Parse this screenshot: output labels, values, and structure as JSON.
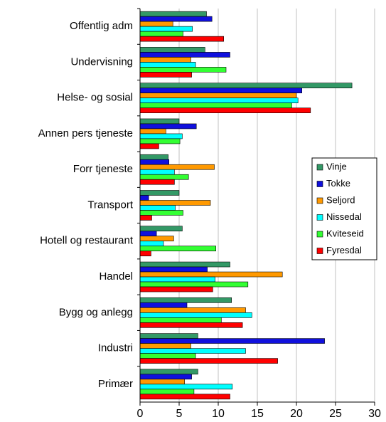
{
  "chart_data": {
    "type": "hbar",
    "categories": [
      "Offentlig adm",
      "Undervisning",
      "Helse- og sosial",
      "Annen pers tjeneste",
      "Forr tjeneste",
      "Transport",
      "Hotell og restaurant",
      "Handel",
      "Bygg og anlegg",
      "Industri",
      "Primær"
    ],
    "series": [
      {
        "name": "Vinje",
        "color": "#339966",
        "values": [
          8.5,
          8.3,
          27.1,
          5.0,
          3.6,
          5.0,
          5.4,
          11.5,
          11.7,
          7.4,
          7.4
        ]
      },
      {
        "name": "Tokke",
        "color": "#1010dd",
        "values": [
          9.2,
          11.5,
          20.7,
          7.2,
          3.7,
          1.1,
          2.1,
          8.6,
          6.0,
          23.6,
          6.6
        ]
      },
      {
        "name": "Seljord",
        "color": "#ff9900",
        "values": [
          4.2,
          6.5,
          20.0,
          3.3,
          9.5,
          9.0,
          4.3,
          18.2,
          13.5,
          6.5,
          5.7
        ]
      },
      {
        "name": "Nissedal",
        "color": "#00ffff",
        "values": [
          6.7,
          7.1,
          20.2,
          5.4,
          4.4,
          4.5,
          3.0,
          9.6,
          14.3,
          13.5,
          11.8
        ]
      },
      {
        "name": "Kviteseid",
        "color": "#33ff33",
        "values": [
          5.5,
          11.0,
          19.4,
          5.1,
          6.2,
          5.5,
          9.7,
          13.8,
          10.4,
          7.1,
          6.9
        ]
      },
      {
        "name": "Fyresdal",
        "color": "#ff0000",
        "values": [
          10.7,
          6.6,
          21.8,
          2.4,
          4.4,
          1.5,
          1.4,
          9.3,
          13.1,
          17.6,
          11.5
        ]
      }
    ],
    "xlim": [
      0,
      30
    ],
    "xticks": [
      0,
      5,
      10,
      15,
      20,
      25,
      30
    ],
    "grid": true,
    "legend": "right"
  }
}
